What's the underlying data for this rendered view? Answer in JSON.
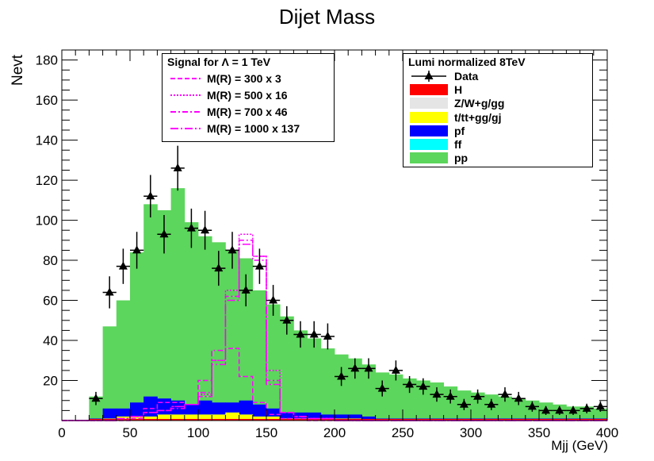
{
  "title": "Dijet Mass",
  "colors": {
    "H": "#ff0000",
    "ZW": "#e5e5e5",
    "ttgg": "#ffff00",
    "pf": "#0000ff",
    "ff": "#00ffff",
    "pp": "#5cd65c",
    "signal": "#ff00ff",
    "data": "#000000"
  },
  "legend_signal": {
    "header": "Signal for Λ = 1 TeV",
    "items": [
      "M(R) = 300 x 3",
      "M(R) = 500 x 16",
      "M(R) = 700 x 46",
      "M(R) = 1000 x 137"
    ]
  },
  "legend_bkg": {
    "header": "Lumi normalized 8TeV",
    "items": [
      "Data",
      "H",
      "Z/W+g/gg",
      "t/tt+gg/gj",
      "pf",
      "ff",
      "pp"
    ]
  },
  "chart_data": {
    "type": "bar",
    "title": "Dijet Mass",
    "xlabel": "Mjj (GeV)",
    "ylabel": "Nevt",
    "xlim": [
      0,
      400
    ],
    "ylim": [
      0,
      185
    ],
    "x_ticks": [
      0,
      50,
      100,
      150,
      200,
      250,
      300,
      350,
      400
    ],
    "y_ticks": [
      20,
      40,
      60,
      80,
      100,
      120,
      140,
      160,
      180
    ],
    "bin_width": 10,
    "bin_edges_start": [
      0,
      10,
      20,
      30,
      40,
      50,
      60,
      70,
      80,
      90,
      100,
      110,
      120,
      130,
      140,
      150,
      160,
      170,
      180,
      190,
      200,
      210,
      220,
      230,
      240,
      250,
      260,
      270,
      280,
      290,
      300,
      310,
      320,
      330,
      340,
      350,
      360,
      370,
      380,
      390
    ],
    "stack_order": [
      "H",
      "Z/W+g/gg",
      "t/tt+gg/gj",
      "pf",
      "ff",
      "pp"
    ],
    "series": [
      {
        "name": "pp",
        "values": [
          0,
          0,
          11,
          41,
          54,
          75,
          96,
          94,
          106,
          91,
          82,
          80,
          76,
          71,
          57,
          52,
          48,
          41,
          37,
          33,
          30,
          28,
          26,
          23,
          22,
          20,
          19,
          18,
          16,
          14,
          13,
          12,
          11,
          10,
          9,
          8,
          7,
          6,
          6,
          5
        ]
      },
      {
        "name": "pf",
        "values": [
          0,
          0,
          1,
          5,
          4,
          7,
          10,
          8,
          7,
          5,
          7,
          6,
          5,
          7,
          6,
          4,
          3,
          3,
          3,
          2,
          2,
          2,
          2,
          1,
          1,
          1,
          1,
          1,
          1,
          1,
          1,
          1,
          1,
          1,
          1,
          1,
          1,
          1,
          1,
          1
        ]
      },
      {
        "name": "ff",
        "values": [
          0,
          0,
          0,
          0,
          0,
          0,
          0,
          0,
          0,
          0,
          0,
          0,
          0,
          0,
          0,
          0,
          0,
          0,
          0,
          0,
          0,
          0,
          0,
          0,
          0,
          0,
          0,
          0,
          0,
          0,
          0,
          0,
          0,
          0,
          0,
          0,
          0,
          0,
          0,
          0
        ]
      },
      {
        "name": "t/tt+gg/gj",
        "values": [
          0,
          0,
          0,
          1,
          2,
          2,
          2,
          3,
          3,
          3,
          3,
          3,
          4,
          3,
          2,
          2,
          1,
          1,
          1,
          1,
          1,
          1,
          0,
          0,
          0,
          0,
          0,
          0,
          0,
          0,
          0,
          0,
          0,
          0,
          0,
          0,
          0,
          0,
          0,
          0
        ]
      },
      {
        "name": "Z/W+g/gg",
        "values": [
          0,
          0,
          0,
          0,
          0,
          0,
          0,
          0,
          0,
          0,
          0,
          0,
          0,
          0,
          0,
          0,
          0,
          0,
          0,
          0,
          0,
          0,
          0,
          0,
          0,
          0,
          0,
          0,
          0,
          0,
          0,
          0,
          0,
          0,
          0,
          0,
          0,
          0,
          0,
          0
        ]
      },
      {
        "name": "H",
        "values": [
          0,
          0,
          0,
          0,
          0,
          0,
          0,
          0,
          0,
          0,
          0,
          0,
          0,
          0,
          0,
          0,
          0,
          0,
          0,
          0,
          0,
          0,
          0,
          0,
          0,
          0,
          0,
          0,
          0,
          0,
          0,
          0,
          0,
          0,
          0,
          0,
          0,
          0,
          0,
          0
        ]
      }
    ],
    "data_points": {
      "name": "Data",
      "x": [
        25,
        35,
        45,
        55,
        65,
        75,
        85,
        95,
        105,
        115,
        125,
        135,
        145,
        155,
        165,
        175,
        185,
        195,
        205,
        215,
        225,
        235,
        245,
        255,
        265,
        275,
        285,
        295,
        305,
        315,
        325,
        335,
        345,
        355,
        365,
        375,
        385,
        395
      ],
      "y": [
        11,
        64,
        77,
        85,
        112,
        93,
        126,
        96,
        95,
        76,
        85,
        65,
        77,
        60,
        50,
        43,
        43,
        42,
        22,
        26,
        26,
        16,
        25,
        18,
        17,
        13,
        12,
        8,
        12,
        8,
        13,
        11,
        7,
        5,
        5,
        5,
        6,
        7
      ],
      "err": [
        3.3,
        8,
        8.8,
        9.2,
        10.6,
        9.6,
        11.2,
        9.8,
        9.7,
        8.7,
        9.2,
        8,
        8.8,
        7.7,
        7.1,
        6.6,
        6.6,
        6.5,
        4.7,
        5.1,
        5.1,
        4,
        5,
        4.2,
        4.1,
        3.6,
        3.5,
        2.8,
        3.5,
        2.8,
        3.6,
        3.3,
        2.6,
        2.2,
        2.2,
        2.2,
        2.4,
        2.6
      ]
    },
    "signals": [
      {
        "name": "M(R) = 300 x 3",
        "dash": "dashed",
        "values": [
          0,
          0,
          0,
          0,
          0,
          1,
          6,
          9,
          9,
          8,
          20,
          30,
          36,
          22,
          9,
          3,
          1,
          1,
          0,
          0,
          0,
          0,
          0,
          0,
          0,
          0,
          0,
          0,
          0,
          0,
          0,
          0,
          0,
          0,
          0,
          0,
          0,
          0,
          0,
          0
        ]
      },
      {
        "name": "M(R) = 500 x 16",
        "dash": "dotted",
        "values": [
          0,
          0,
          0,
          0,
          1,
          2,
          4,
          5,
          7,
          8,
          13,
          30,
          65,
          93,
          82,
          25,
          4,
          2,
          1,
          1,
          0,
          0,
          0,
          0,
          0,
          0,
          0,
          0,
          0,
          0,
          0,
          0,
          0,
          0,
          0,
          0,
          0,
          0,
          0,
          0
        ]
      },
      {
        "name": "M(R) = 700 x 46",
        "dash": "dashdot",
        "values": [
          0,
          0,
          0,
          0,
          1,
          2,
          4,
          5,
          6,
          8,
          14,
          35,
          62,
          90,
          80,
          20,
          4,
          2,
          1,
          1,
          0,
          0,
          0,
          0,
          0,
          0,
          0,
          0,
          0,
          0,
          0,
          0,
          0,
          0,
          0,
          0,
          0,
          0,
          0,
          0
        ]
      },
      {
        "name": "M(R) = 1000 x 137",
        "dash": "longdashdot",
        "values": [
          0,
          0,
          0,
          0,
          1,
          2,
          4,
          5,
          7,
          8,
          12,
          28,
          60,
          88,
          82,
          18,
          4,
          2,
          1,
          1,
          0,
          0,
          0,
          0,
          0,
          0,
          0,
          0,
          0,
          0,
          0,
          0,
          0,
          0,
          0,
          0,
          0,
          0,
          0,
          0
        ]
      }
    ]
  }
}
